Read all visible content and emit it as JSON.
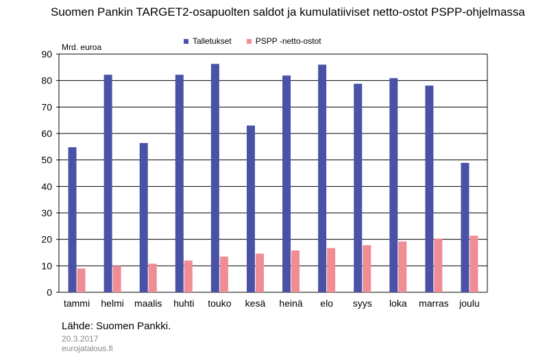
{
  "chart_data": {
    "type": "bar",
    "title": "Suomen Pankin TARGET2-osapuolten saldot ja kumulatiiviset netto-ostot PSPP-ohjelmassa",
    "ylabel": "Mrd. euroa",
    "xlabel": "",
    "categories": [
      "tammi",
      "helmi",
      "maalis",
      "huhti",
      "touko",
      "kesä",
      "heinä",
      "elo",
      "syys",
      "loka",
      "marras",
      "joulu"
    ],
    "series": [
      {
        "name": "Talletukset",
        "color": "#4a52a8",
        "values": [
          54.8,
          82.2,
          56.4,
          82.2,
          86.3,
          63.0,
          81.9,
          86.0,
          78.8,
          80.9,
          78.1,
          48.9
        ]
      },
      {
        "name": "PSPP -netto-ostot",
        "color": "#f08c94",
        "values": [
          9.0,
          10.0,
          10.8,
          12.0,
          13.5,
          14.6,
          15.8,
          16.7,
          17.8,
          19.2,
          20.3,
          21.4
        ]
      }
    ],
    "ylim": [
      0,
      90
    ],
    "yticks": [
      0,
      10,
      20,
      30,
      40,
      50,
      60,
      70,
      80,
      90
    ],
    "grid": true,
    "legend": "top"
  },
  "footer": {
    "source": "Lähde: Suomen Pankki.",
    "date": "20.3.2017",
    "site": "eurojatalous.fi"
  }
}
